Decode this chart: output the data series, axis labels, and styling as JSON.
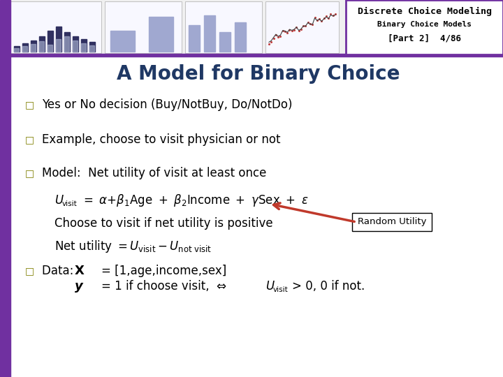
{
  "title": "A Model for Binary Choice",
  "title_color": "#1F3864",
  "title_fontsize": 20,
  "bg_color": "#FFFFFF",
  "header_bg": "#FFFFFF",
  "header_border": "#7030A0",
  "header_title": "Discrete Choice Modeling",
  "header_subtitle1": "Binary Choice Models",
  "header_subtitle2": "[Part 2]  4/86",
  "header_text_color": "#000000",
  "left_bar_color": "#7030A0",
  "bullet_color": "#7F7F00",
  "bullet_char": "□",
  "bullet1": "Yes or No decision (Buy/NotBuy, Do/NotDo)",
  "bullet2": "Example, choose to visit physician or not",
  "bullet3": "Model:  Net utility of visit at least once",
  "choose_line": "Choose to visit if net utility is positive",
  "random_utility_label": "Random Utility",
  "arrow_color": "#C0392B",
  "box_color": "#FFFFFF",
  "box_border": "#000000",
  "main_text_color": "#000000",
  "header_strip_color": "#F0F0F0",
  "panel_face_color": "#F8F8FF",
  "panel_edge_color": "#AAAAAA",
  "bar_dark": "#303060",
  "bar_light": "#A0A8D0",
  "purple_line_color": "#7030A0"
}
